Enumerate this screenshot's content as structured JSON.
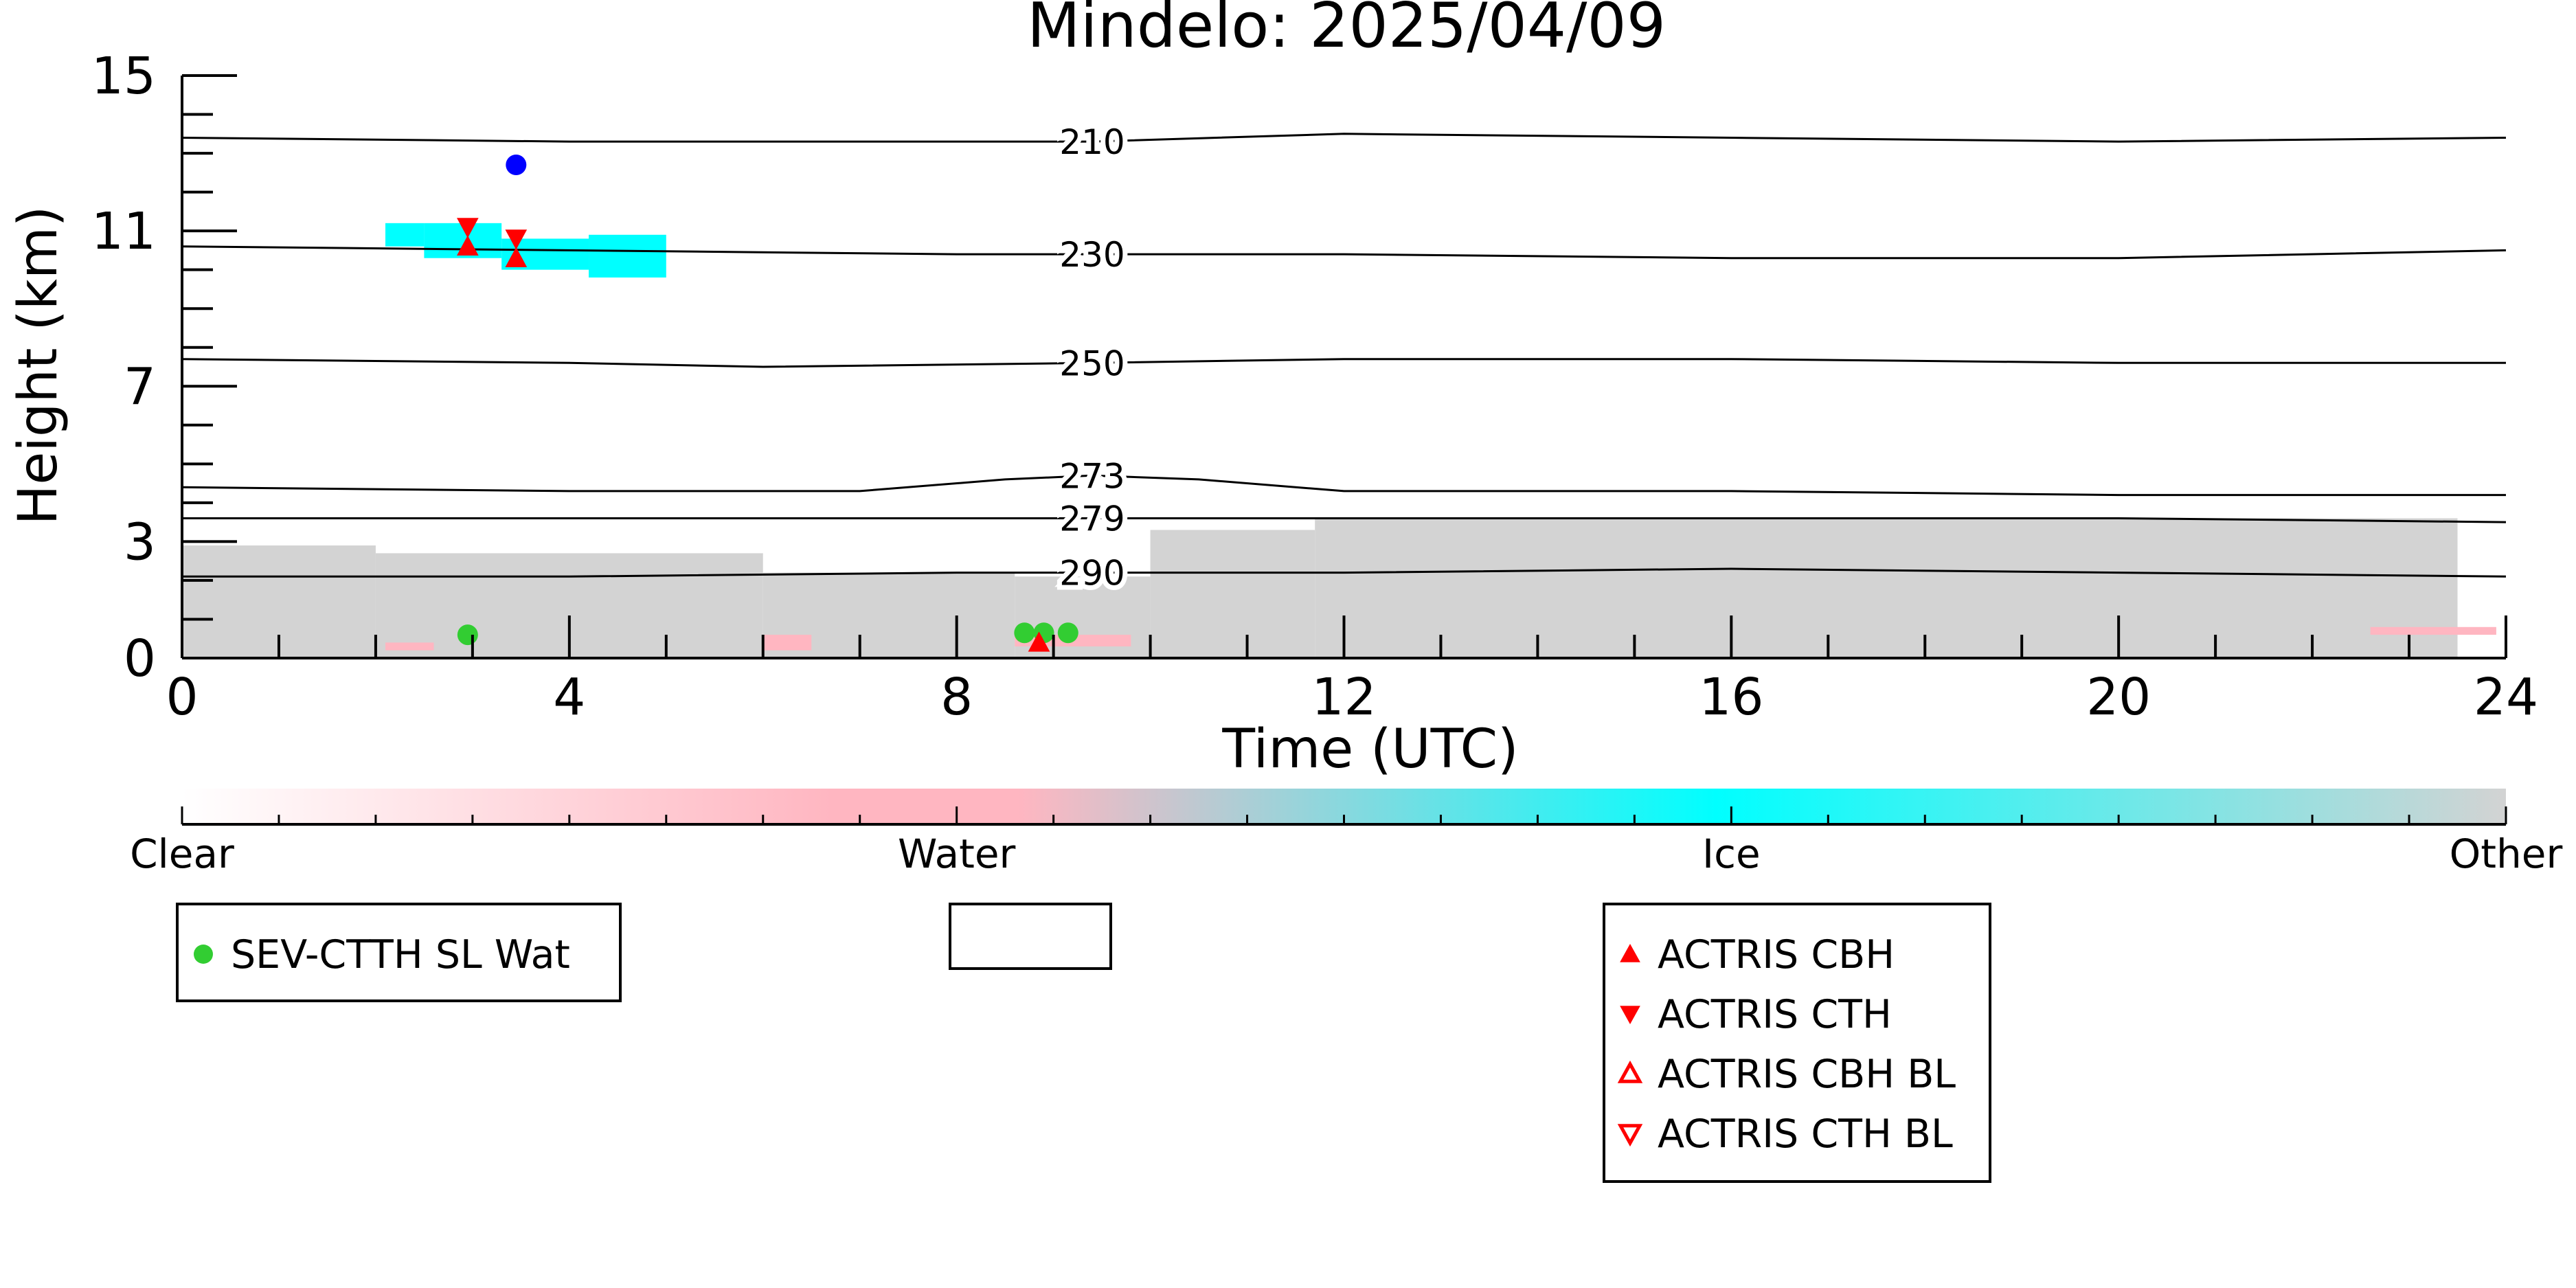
{
  "chart_data": {
    "type": "scatter",
    "title": "Mindelo: 2025/04/09",
    "xlabel": "Time (UTC)",
    "ylabel": "Height (km)",
    "xlim": [
      0,
      24
    ],
    "ylim": [
      0,
      15
    ],
    "x_ticks": [
      0,
      4,
      8,
      12,
      16,
      20,
      24
    ],
    "y_ticks": [
      0,
      3,
      7,
      11,
      15
    ],
    "grid": false,
    "background_layer": {
      "description": "cloud phase curtain",
      "color_scale": {
        "labels": [
          "Clear",
          "Water",
          "Ice",
          "Other"
        ],
        "colors": [
          "#ffffff",
          "#ffb6c1",
          "#00ffff",
          "#d3d3d3"
        ]
      },
      "other_regions": [
        {
          "x": [
            0,
            2.0
          ],
          "top": 2.9
        },
        {
          "x": [
            2.0,
            6.0
          ],
          "top": 2.7
        },
        {
          "x": [
            6.0,
            8.6
          ],
          "top": 2.2
        },
        {
          "x": [
            8.6,
            10.0
          ],
          "top": 2.1
        },
        {
          "x": [
            10.0,
            11.7
          ],
          "top": 3.3
        },
        {
          "x": [
            11.7,
            23.5
          ],
          "top": 3.6
        }
      ],
      "ice_regions": [
        {
          "x": [
            2.1,
            2.5
          ],
          "ymin": 10.6,
          "ymax": 11.2
        },
        {
          "x": [
            2.5,
            3.3
          ],
          "ymin": 10.3,
          "ymax": 11.2
        },
        {
          "x": [
            3.3,
            4.2
          ],
          "ymin": 10.0,
          "ymax": 10.8
        },
        {
          "x": [
            4.2,
            5.0
          ],
          "ymin": 9.8,
          "ymax": 10.9
        }
      ],
      "water_regions": [
        {
          "x": [
            2.1,
            2.6
          ],
          "ymin": 0.2,
          "ymax": 0.4
        },
        {
          "x": [
            6.0,
            6.5
          ],
          "ymin": 0.2,
          "ymax": 0.6
        },
        {
          "x": [
            8.6,
            9.8
          ],
          "ymin": 0.3,
          "ymax": 0.6
        },
        {
          "x": [
            22.6,
            23.9
          ],
          "ymin": 0.6,
          "ymax": 0.8
        }
      ]
    },
    "contour_lines": {
      "description": "temperature isotherms",
      "series": [
        {
          "name": "210",
          "x": [
            0,
            4,
            8,
            9.4,
            12,
            16,
            20,
            24
          ],
          "y": [
            13.4,
            13.3,
            13.3,
            13.3,
            13.5,
            13.4,
            13.3,
            13.4
          ]
        },
        {
          "name": "230",
          "x": [
            0,
            4,
            8,
            9.4,
            12,
            16,
            20,
            24
          ],
          "y": [
            10.6,
            10.5,
            10.4,
            10.4,
            10.4,
            10.3,
            10.3,
            10.5
          ]
        },
        {
          "name": "250",
          "x": [
            0,
            4,
            6,
            9.4,
            12,
            16,
            20,
            24
          ],
          "y": [
            7.7,
            7.6,
            7.5,
            7.6,
            7.7,
            7.7,
            7.6,
            7.6
          ]
        },
        {
          "name": "273",
          "x": [
            0,
            4,
            7,
            8.5,
            9.4,
            10.5,
            12,
            16,
            20,
            24
          ],
          "y": [
            4.4,
            4.3,
            4.3,
            4.6,
            4.7,
            4.6,
            4.3,
            4.3,
            4.2,
            4.2
          ]
        },
        {
          "name": "279",
          "x": [
            0,
            4,
            8,
            9.4,
            12,
            16,
            20,
            24
          ],
          "y": [
            3.6,
            3.6,
            3.6,
            3.6,
            3.6,
            3.6,
            3.6,
            3.5
          ]
        },
        {
          "name": "290",
          "x": [
            0,
            4,
            8,
            9.4,
            12,
            16,
            20,
            24
          ],
          "y": [
            2.1,
            2.1,
            2.2,
            2.2,
            2.2,
            2.3,
            2.2,
            2.1
          ]
        }
      ]
    },
    "series": [
      {
        "name": "SEV-CTTH SL Wat",
        "marker": "filled-circle",
        "color": "#32cd32",
        "x": [
          2.95,
          8.7,
          8.9,
          9.15
        ],
        "y": [
          0.6,
          0.65,
          0.65,
          0.65
        ]
      },
      {
        "name": "",
        "marker": "filled-circle",
        "color": "#0000ff",
        "x": [
          3.45
        ],
        "y": [
          12.7
        ]
      },
      {
        "name": "ACTRIS CBH",
        "marker": "filled-triangle-up",
        "color": "#ff0000",
        "x": [
          2.95,
          3.45,
          8.85
        ],
        "y": [
          10.6,
          10.3,
          0.4
        ]
      },
      {
        "name": "ACTRIS CTH",
        "marker": "filled-triangle-down",
        "color": "#ff0000",
        "x": [
          2.95,
          3.45
        ],
        "y": [
          11.1,
          10.8
        ]
      },
      {
        "name": "ACTRIS CBH BL",
        "marker": "open-triangle-up",
        "color": "#ff0000",
        "x": [],
        "y": []
      },
      {
        "name": "ACTRIS CTH BL",
        "marker": "open-triangle-down",
        "color": "#ff0000",
        "x": [],
        "y": []
      }
    ],
    "legends": [
      {
        "placement": "below-left",
        "entries": [
          "SEV-CTTH SL Wat"
        ]
      },
      {
        "placement": "below-center",
        "entries": []
      },
      {
        "placement": "below-right",
        "entries": [
          "ACTRIS CBH",
          "ACTRIS CTH",
          "ACTRIS CBH BL",
          "ACTRIS CTH BL"
        ]
      }
    ]
  }
}
